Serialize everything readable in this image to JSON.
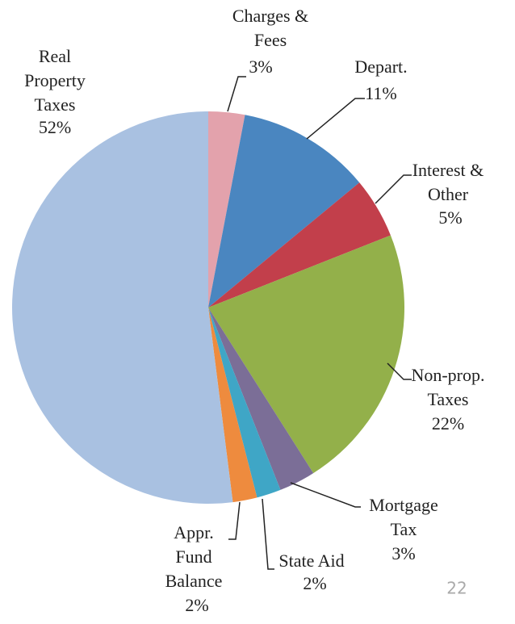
{
  "chart_data": {
    "type": "pie",
    "categories": [
      [
        "Charges &",
        "Fees"
      ],
      [
        "Depart."
      ],
      [
        "Interest &",
        "Other"
      ],
      [
        "Non-prop.",
        "Taxes"
      ],
      [
        "Mortgage",
        "Tax"
      ],
      [
        "State Aid"
      ],
      [
        "Appr.",
        "Fund",
        "Balance"
      ],
      [
        "Real",
        "Property",
        "Taxes"
      ]
    ],
    "values": [
      3,
      11,
      5,
      22,
      3,
      2,
      2,
      52
    ],
    "value_labels": [
      "3%",
      "11%",
      "5%",
      "22%",
      "3%",
      "2%",
      "2%",
      "52%"
    ],
    "colors": [
      "#e3a2ac",
      "#4a86c0",
      "#c23f4b",
      "#93b04a",
      "#7b6e97",
      "#3fa6c6",
      "#ee8b3e",
      "#a9c1e1"
    ],
    "page_number": "22"
  }
}
